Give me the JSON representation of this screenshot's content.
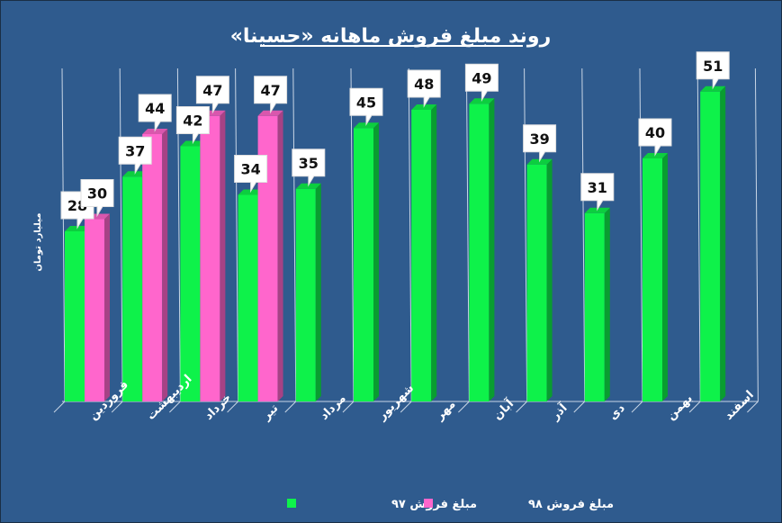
{
  "chart_data": {
    "type": "bar",
    "title": "روند مبلغ فروش ماهانه «حسینا»",
    "ylabel": "میلیارد تومان",
    "xlabel": "",
    "categories": [
      "فروردین",
      "اردیبهشت",
      "خرداد",
      "تیر",
      "مرداد",
      "شهریور",
      "مهر",
      "آبان",
      "آذر",
      "دی",
      "بهمن",
      "اسفند"
    ],
    "series": [
      {
        "name": "مبلغ فروش ۹۷",
        "color": "#0ef24a",
        "values": [
          28,
          37,
          42,
          34,
          35,
          45,
          48,
          49,
          39,
          31,
          40,
          51
        ]
      },
      {
        "name": "مبلغ فروش ۹۸",
        "color": "#ff66cc",
        "values": [
          30,
          44,
          47,
          47,
          null,
          null,
          null,
          null,
          null,
          null,
          null,
          null
        ]
      }
    ],
    "ylim": [
      0,
      60
    ],
    "grid": "vertical",
    "legend": "bottom",
    "style": {
      "background": "#2f5b8e",
      "label_box": "#ffffff"
    }
  }
}
